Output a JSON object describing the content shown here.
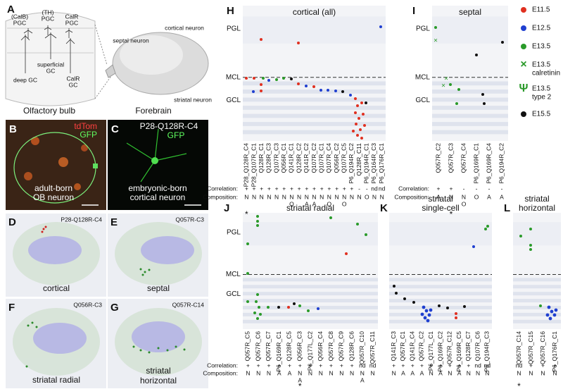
{
  "a": {
    "letter": "A",
    "calb_pgc": [
      "(CalB)",
      "PGC"
    ],
    "th_pgc": [
      "(TH)",
      "PGC"
    ],
    "calr_pgc": [
      "CalR",
      "PGC"
    ],
    "superficial_gc": [
      "superficial",
      "GC"
    ],
    "deep_gc": "deep GC",
    "calr_gc": [
      "CalR",
      "GC"
    ],
    "olfactory_bulb": "Olfactory bulb",
    "forebrain": "Forebrain",
    "septal_neuron": "septal neuron",
    "cortical_neuron": "cortical neuron",
    "striatal_neuron": "striatal neuron"
  },
  "b": {
    "letter": "B",
    "stain1": "tdTom",
    "stain2": "GFP",
    "caption": [
      "adult-born",
      "OB neuron"
    ]
  },
  "c": {
    "letter": "C",
    "cell": "P28-Q128R-C4",
    "stain": "GFP",
    "caption": [
      "embryonic-born",
      "cortical neuron"
    ]
  },
  "d": {
    "letter": "D",
    "cell": "P28-Q128R-C4",
    "caption": "cortical"
  },
  "e": {
    "letter": "E",
    "cell": "Q057R-C3",
    "caption": "septal"
  },
  "f": {
    "letter": "F",
    "cell": "Q056R-C3",
    "caption": "striatal radial"
  },
  "g": {
    "letter": "G",
    "cell": "Q057R-C14",
    "caption": [
      "striatal",
      "horizontal"
    ]
  },
  "legend": [
    {
      "name": "E11.5",
      "color": "#e03020",
      "symbol": "dot"
    },
    {
      "name": "E12.5",
      "color": "#1f3fd0",
      "symbol": "dot"
    },
    {
      "name": "E13.5",
      "color": "#2a9a2a",
      "symbol": "dot"
    },
    {
      "name": [
        "E13.5",
        "calretinin"
      ],
      "color": "#2a9a2a",
      "symbol": "×"
    },
    {
      "name": [
        "E13.5",
        "type 2"
      ],
      "color": "#2a9a2a",
      "symbol": "Ψ"
    },
    {
      "name": "E15.5",
      "color": "#111111",
      "symbol": "dot"
    }
  ],
  "panels": [
    {
      "key": "h",
      "letter": "H",
      "title": [
        "cortical (all)"
      ],
      "layers": [
        "PGL",
        "MCL",
        "GCL"
      ],
      "row_labels": [
        "Correlation:",
        "Composition:"
      ],
      "columns": [
        "P28_Q128R_C4",
        "P28_Q107R_C1",
        "Q128R_C1",
        "Q128R_C3",
        "Q107R_C3",
        "Q056R_C1",
        "Q141R_C1",
        "Q128R_C2",
        "Q141R_C2",
        "Q107R_C2",
        "Q107R_C1",
        "Q107R_C4",
        "Q056R_C2",
        "Q107R_C5",
        "P6_Q194R_C2",
        "Q128R_C11",
        "P6_Q194R_C1",
        "P6_Q164R_C3",
        "P6_Q176R_C1"
      ],
      "correlation": [
        "+",
        "+",
        "+",
        "+",
        "+",
        "+",
        "+",
        "+",
        "+",
        "+",
        "+",
        "+",
        "+",
        "+",
        "+",
        "-",
        "-",
        "nd",
        "nd"
      ],
      "composition": [
        [
          "N"
        ],
        [
          "N"
        ],
        [
          "N"
        ],
        [
          "N"
        ],
        [
          "N"
        ],
        [
          "N"
        ],
        [
          "N",
          "O"
        ],
        [
          "N"
        ],
        [
          "N",
          "A"
        ],
        [
          "N",
          "A"
        ],
        [
          "N"
        ],
        [
          "N",
          "O"
        ],
        [
          "N"
        ],
        [
          "N",
          "O"
        ],
        [
          "N"
        ],
        [
          "N"
        ],
        [
          "O"
        ],
        [
          "N"
        ],
        [
          "N"
        ]
      ],
      "asterisk": [
        "*",
        0
      ]
    },
    {
      "key": "i",
      "letter": "I",
      "title": [
        "septal"
      ],
      "layers": [
        "PGL",
        "MCL",
        "GCL"
      ],
      "row_labels": [
        "Correlation:",
        "Composition:"
      ],
      "columns": [
        "Q057R_C2",
        "Q057R_C3",
        "Q057R_C4",
        "P6_Q169R_C1",
        "P6_Q169R_C4",
        "P6_Q194R_C2"
      ],
      "correlation": [
        "+",
        "+",
        "-",
        "-",
        "-",
        "-"
      ],
      "composition": [
        [
          "A"
        ],
        [
          "N"
        ],
        [
          "N",
          "O"
        ],
        [
          "O"
        ],
        [
          "A"
        ],
        [
          "A"
        ]
      ],
      "asterisk": [
        "*",
        1
      ]
    },
    {
      "key": "j",
      "letter": "J",
      "title": [
        "striatal radial"
      ],
      "layers": [
        "PGL",
        "MCL",
        "GCL"
      ],
      "row_labels": [
        "Correlation:",
        "Composition:"
      ],
      "columns": [
        "Q057R_C5",
        "Q057R_C6",
        "Q057R_C7",
        "P6_Q169R_C1",
        "Q128R_C5",
        "Q056R_C3",
        "P6_Q177L_C2",
        "Q056R_C4",
        "Q057R_C8",
        "Q057R_C9",
        "Q128R_C6",
        "Q057R_C10",
        "Q057R_C11"
      ],
      "correlation": [
        "+",
        "+",
        "+",
        "+",
        "+",
        "+",
        "+",
        "+",
        "+",
        "+",
        "+",
        "nd",
        "nd"
      ],
      "composition": [
        [
          "N"
        ],
        [
          "N"
        ],
        [
          "N"
        ],
        [
          "A"
        ],
        [
          "A"
        ],
        [
          "N",
          "A"
        ],
        [
          "N"
        ],
        [
          "N"
        ],
        [
          "N"
        ],
        [
          "N"
        ],
        [
          "N"
        ],
        [
          "N",
          "A"
        ],
        [
          "N"
        ]
      ],
      "asterisk": [
        "*",
        5
      ]
    },
    {
      "key": "k",
      "letter": "K",
      "title": [
        "striatal",
        "single-cell"
      ],
      "columns": [
        "Q141R_C3",
        "Q057R_C1",
        "Q141R_C4",
        "Q057R_C2",
        "P6_Q177L_C1",
        "P6_Q169R_C2",
        "Q057R_C12",
        "P6_Q169R_C5",
        "Q128R_C7",
        "Q107R_C6",
        "P6_Q194R_C3"
      ],
      "correlation": [
        "+",
        "+",
        "+",
        "+",
        "+",
        "+",
        "+",
        "+",
        "+",
        "nd",
        "nd"
      ],
      "composition": [
        [
          "N"
        ],
        [
          "A"
        ],
        [
          "A"
        ],
        [
          "A"
        ],
        [
          "N"
        ],
        [
          "A"
        ],
        [
          "N"
        ],
        [
          "A"
        ],
        [
          "N"
        ],
        [
          "N"
        ],
        [
          "N"
        ]
      ]
    },
    {
      "key": "l",
      "letter": "L",
      "title": [
        "striatal",
        "horizontal"
      ],
      "columns": [
        "Q057R_C14",
        "Q057R_C15",
        "Q057R_C16",
        "P6_Q176R_C1"
      ],
      "correlation": [
        "nd",
        "+",
        "+",
        "+"
      ],
      "composition": [
        [
          "N"
        ],
        [
          "N"
        ],
        [
          "N"
        ],
        [
          "N"
        ]
      ],
      "asterisk": [
        "*",
        0
      ]
    }
  ]
}
